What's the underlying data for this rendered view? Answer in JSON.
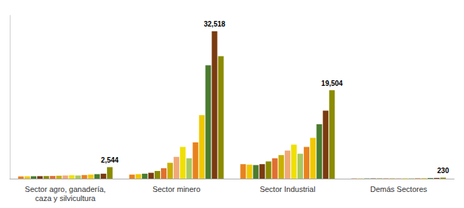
{
  "chart_data": {
    "type": "bar",
    "categories": [
      "Sector agro, ganadería,\ncaza y silvicultura",
      "Sector minero",
      "Sector Industrial",
      "Demás Sectores"
    ],
    "series": [
      {
        "color": "#e8821e",
        "values": [
          500,
          900,
          3200,
          60
        ]
      },
      {
        "color": "#f0c800",
        "values": [
          520,
          1000,
          3100,
          60
        ]
      },
      {
        "color": "#4a7c2f",
        "values": [
          540,
          1100,
          3000,
          60
        ]
      },
      {
        "color": "#7a3b10",
        "values": [
          560,
          1300,
          3200,
          65
        ]
      },
      {
        "color": "#8b8b00",
        "values": [
          580,
          1700,
          3800,
          70
        ]
      },
      {
        "color": "#e07030",
        "values": [
          600,
          2300,
          4500,
          75
        ]
      },
      {
        "color": "#c8b000",
        "values": [
          650,
          3500,
          5200,
          80
        ]
      },
      {
        "color": "#f0a878",
        "values": [
          700,
          4800,
          6200,
          85
        ]
      },
      {
        "color": "#f0e000",
        "values": [
          750,
          7000,
          7500,
          95
        ]
      },
      {
        "color": "#a8c860",
        "values": [
          700,
          4500,
          5500,
          85
        ]
      },
      {
        "color": "#e8821e",
        "values": [
          800,
          8000,
          7000,
          100
        ]
      },
      {
        "color": "#f0c800",
        "values": [
          900,
          14000,
          9000,
          120
        ]
      },
      {
        "color": "#4a7c2f",
        "values": [
          1000,
          25000,
          12000,
          145
        ]
      },
      {
        "color": "#7a3b10",
        "values": [
          1100,
          32518,
          15000,
          170
        ],
        "value_labels": [
          null,
          "32,518",
          null,
          null
        ]
      },
      {
        "color": "#8b8b00",
        "values": [
          2544,
          27000,
          19504,
          230
        ],
        "value_labels": [
          "2,544",
          null,
          "19,504",
          "230"
        ]
      }
    ],
    "ylim": [
      0,
      36000
    ],
    "tick_labels": "x",
    "grid": false
  }
}
